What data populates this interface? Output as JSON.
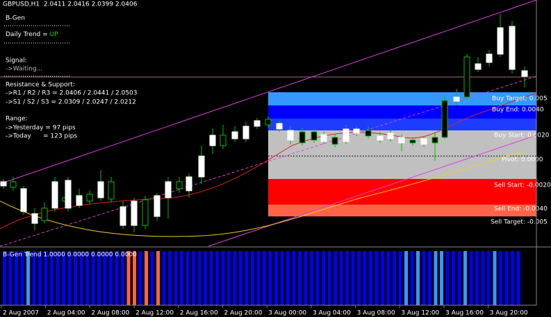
{
  "header": {
    "title": "GBPUSD,H1  2.0411 2.0416 2.0399 2.0406"
  },
  "panel": {
    "name": "B-Gen",
    "trend_label": "Daily Trend = ",
    "trend_value": "UP",
    "signal_label": "Signal:",
    "signal_value": "->Waiting...",
    "sr_label": "Resistance & Support:",
    "resistance": "->R1 / R2 / R3 = 2.0406 / 2.0441 / 2.0503",
    "support": "->S1 / S2 / S3 = 2.0309 / 2.0247 / 2.0212",
    "range_label": "Range:",
    "yesterday": "->Yesterday = 97 pips",
    "today": "->Today      = 123 pips"
  },
  "zones": [
    "Buy Target: 0.005",
    "Buy End: 0.0040",
    "Buy Start: 0.0020",
    "Pivot: 0.0000",
    "Sell Start: -0.0020",
    "Sell End: -0.0040",
    "Sell Target: -0.005"
  ],
  "indicator": {
    "label": "B-Gen Trend 1.0000 0.0000 0.0000 0.0000"
  },
  "x_axis": [
    "2 Aug 2007",
    "2 Aug 04:00",
    "2 Aug 08:00",
    "2 Aug 12:00",
    "2 Aug 16:00",
    "2 Aug 20:00",
    "3 Aug 00:00",
    "3 Aug 04:00",
    "3 Aug 08:00",
    "3 Aug 12:00",
    "3 Aug 16:00",
    "3 Aug 20:00"
  ]
}
